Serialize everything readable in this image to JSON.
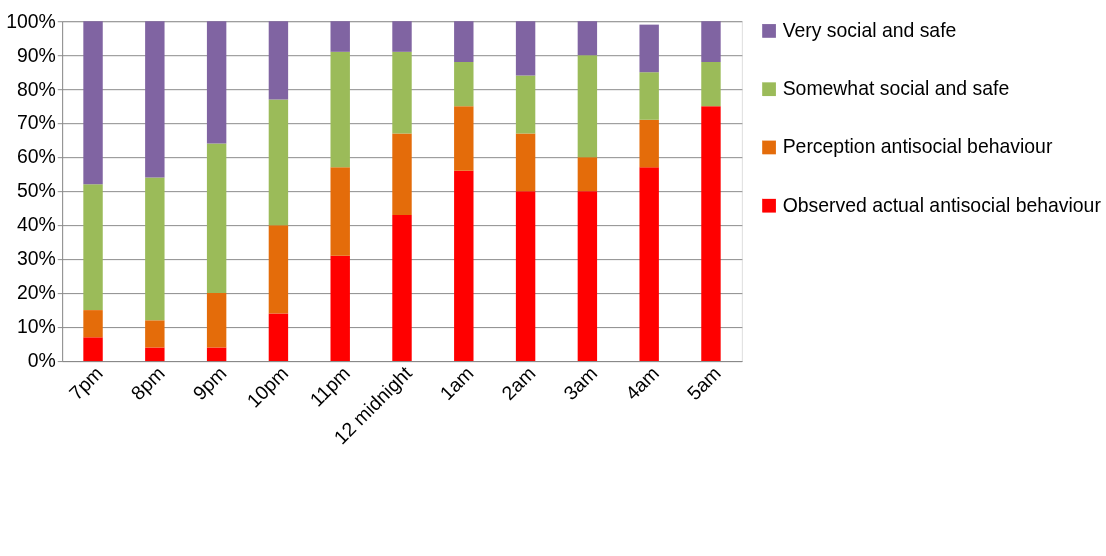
{
  "chart_data": {
    "type": "bar",
    "stacked": true,
    "categories": [
      "7pm",
      "8pm",
      "9pm",
      "10pm",
      "11pm",
      "12 midnight",
      "1am",
      "2am",
      "3am",
      "4am",
      "5am"
    ],
    "series": [
      {
        "name": "Observed actual antisocial behaviour",
        "color": "#ff0000",
        "values": [
          7,
          4,
          4,
          14,
          31,
          43,
          56,
          50,
          50,
          57,
          75
        ]
      },
      {
        "name": "Perception antisocial behaviour",
        "color": "#e46c0a",
        "values": [
          8,
          8,
          16,
          26,
          26,
          24,
          19,
          17,
          10,
          14,
          0
        ]
      },
      {
        "name": "Somewhat social and safe",
        "color": "#9bbb59",
        "values": [
          37,
          42,
          44,
          37,
          34,
          24,
          13,
          17,
          30,
          14,
          13
        ]
      },
      {
        "name": "Very social and safe",
        "color": "#8064a2",
        "values": [
          48,
          46,
          36,
          23,
          9,
          9,
          12,
          16,
          10,
          14,
          12
        ]
      }
    ],
    "ylim": [
      0,
      100
    ],
    "yticks": [
      {
        "value": 0,
        "label": "0%"
      },
      {
        "value": 10,
        "label": "10%"
      },
      {
        "value": 20,
        "label": "20%"
      },
      {
        "value": 30,
        "label": "30%"
      },
      {
        "value": 40,
        "label": "40%"
      },
      {
        "value": 50,
        "label": "50%"
      },
      {
        "value": 60,
        "label": "60%"
      },
      {
        "value": 70,
        "label": "70%"
      },
      {
        "value": 80,
        "label": "80%"
      },
      {
        "value": 90,
        "label": "90%"
      },
      {
        "value": 100,
        "label": "100%"
      }
    ],
    "grid": "y",
    "legend": "right"
  }
}
